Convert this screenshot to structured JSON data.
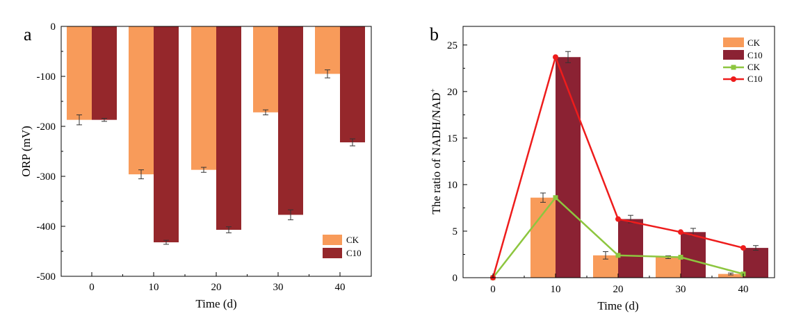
{
  "colors": {
    "ck_bar": "#F89B5A",
    "c10_bar_a": "#95272B",
    "c10_bar_b": "#8B2233",
    "ck_line": "#8DC63F",
    "c10_line": "#EE1C1C"
  },
  "chart_data": [
    {
      "type": "bar",
      "panel": "a",
      "categories": [
        "0",
        "10",
        "20",
        "30",
        "40"
      ],
      "series": [
        {
          "name": "CK",
          "values": [
            -187,
            -296,
            -287,
            -172,
            -95
          ],
          "errors": [
            10,
            9,
            5,
            5,
            8
          ]
        },
        {
          "name": "C10",
          "values": [
            -187,
            -432,
            -407,
            -377,
            -232
          ],
          "errors": [
            3,
            4,
            6,
            10,
            7
          ]
        }
      ],
      "title": "",
      "xlabel": "Time (d)",
      "ylabel": "ORP (mV)",
      "ylim": [
        -500,
        0
      ],
      "yticks": [
        "0",
        "-100",
        "-200",
        "-300",
        "-400",
        "-500"
      ],
      "legend_position": "bottom-right",
      "legend": [
        "CK",
        "C10"
      ]
    },
    {
      "type": "bar+line",
      "panel": "b",
      "categories": [
        "0",
        "10",
        "20",
        "30",
        "40"
      ],
      "series": [
        {
          "name": "CK",
          "kind": "bar",
          "values": [
            0,
            8.6,
            2.4,
            2.2,
            0.4
          ],
          "errors": [
            0,
            0.5,
            0.4,
            0.15,
            0.1
          ]
        },
        {
          "name": "C10",
          "kind": "bar",
          "values": [
            0,
            23.7,
            6.3,
            4.9,
            3.2
          ],
          "errors": [
            0,
            0.6,
            0.4,
            0.4,
            0.25
          ]
        },
        {
          "name": "CK",
          "kind": "line",
          "values": [
            0,
            8.6,
            2.4,
            2.2,
            0.4
          ]
        },
        {
          "name": "C10",
          "kind": "line",
          "values": [
            0,
            23.7,
            6.3,
            4.9,
            3.2
          ]
        }
      ],
      "title": "",
      "xlabel": "Time (d)",
      "ylabel": "The ratio of NADH/NAD",
      "ylabel_sup": "+",
      "ylim": [
        0,
        27
      ],
      "yticks": [
        "0",
        "5",
        "10",
        "15",
        "20",
        "25"
      ],
      "legend_position": "top-right",
      "legend": [
        "CK",
        "C10",
        "CK",
        "C10"
      ]
    }
  ]
}
